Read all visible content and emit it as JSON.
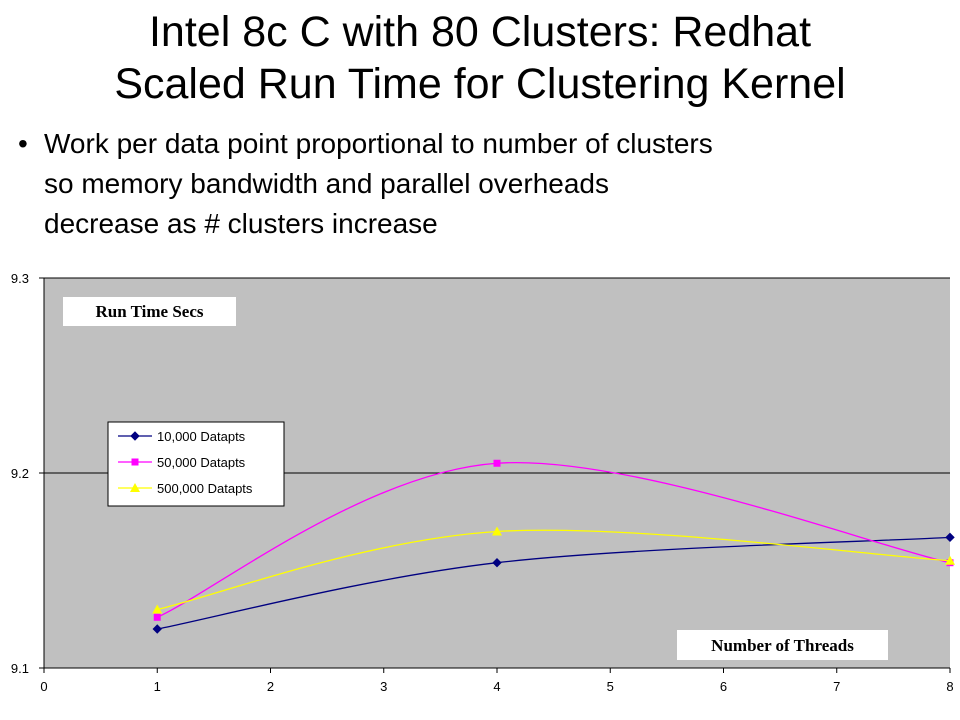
{
  "slide": {
    "title_lines": [
      "Intel 8c C with 80 Clusters: Redhat",
      "Scaled Run Time for Clustering Kernel"
    ],
    "bullet_char": "•",
    "bullet_lines": [
      "Work per data point proportional to number of clusters",
      "so memory bandwidth and parallel overheads",
      "decrease as # clusters increase"
    ]
  },
  "chart_data": {
    "type": "line",
    "title": "",
    "xlabel": "Number of Threads",
    "ylabel": "Run Time Secs",
    "xlim": [
      0,
      8
    ],
    "ylim": [
      9.1,
      9.3
    ],
    "x_ticks": [
      "0",
      "1",
      "2",
      "3",
      "4",
      "5",
      "6",
      "7",
      "8"
    ],
    "y_ticks": [
      "9.1",
      "9.2",
      "9.3"
    ],
    "grid": "horizontal major gridlines",
    "legend_placement": "center-left",
    "plot_background": "#c0c0c0",
    "series": [
      {
        "name": "10,000 Datapts",
        "color": "#000080",
        "marker": "diamond",
        "x": [
          1,
          4,
          8
        ],
        "y": [
          9.12,
          9.154,
          9.167
        ]
      },
      {
        "name": "50,000 Datapts",
        "color": "#ff00ff",
        "marker": "square",
        "x": [
          1,
          4,
          8
        ],
        "y": [
          9.126,
          9.205,
          9.154
        ]
      },
      {
        "name": "500,000 Datapts",
        "color": "#ffff00",
        "marker": "triangle",
        "x": [
          1,
          4,
          8
        ],
        "y": [
          9.13,
          9.17,
          9.155
        ]
      }
    ]
  }
}
